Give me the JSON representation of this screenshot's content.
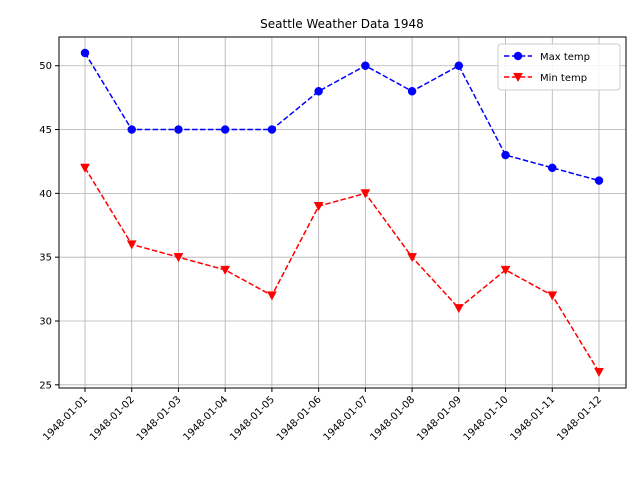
{
  "chart_data": {
    "type": "line",
    "title": "Seattle Weather Data 1948",
    "xlabel": "",
    "ylabel": "",
    "categories": [
      "1948-01-01",
      "1948-01-02",
      "1948-01-03",
      "1948-01-04",
      "1948-01-05",
      "1948-01-06",
      "1948-01-07",
      "1948-01-08",
      "1948-01-09",
      "1948-01-10",
      "1948-01-11",
      "1948-01-12"
    ],
    "ylim": [
      24.75,
      52.25
    ],
    "yticks": [
      25,
      30,
      35,
      40,
      45,
      50
    ],
    "grid": true,
    "legend": "top-right",
    "series": [
      {
        "name": "Max temp",
        "values": [
          51,
          45,
          45,
          45,
          45,
          48,
          50,
          48,
          50,
          43,
          42,
          41
        ],
        "color": "#0000ff",
        "marker": "circle",
        "linestyle": "dashed"
      },
      {
        "name": "Min temp",
        "values": [
          42,
          36,
          35,
          34,
          32,
          39,
          40,
          35,
          31,
          34,
          32,
          26
        ],
        "color": "#ff0000",
        "marker": "triangle-down",
        "linestyle": "dashed"
      }
    ]
  }
}
